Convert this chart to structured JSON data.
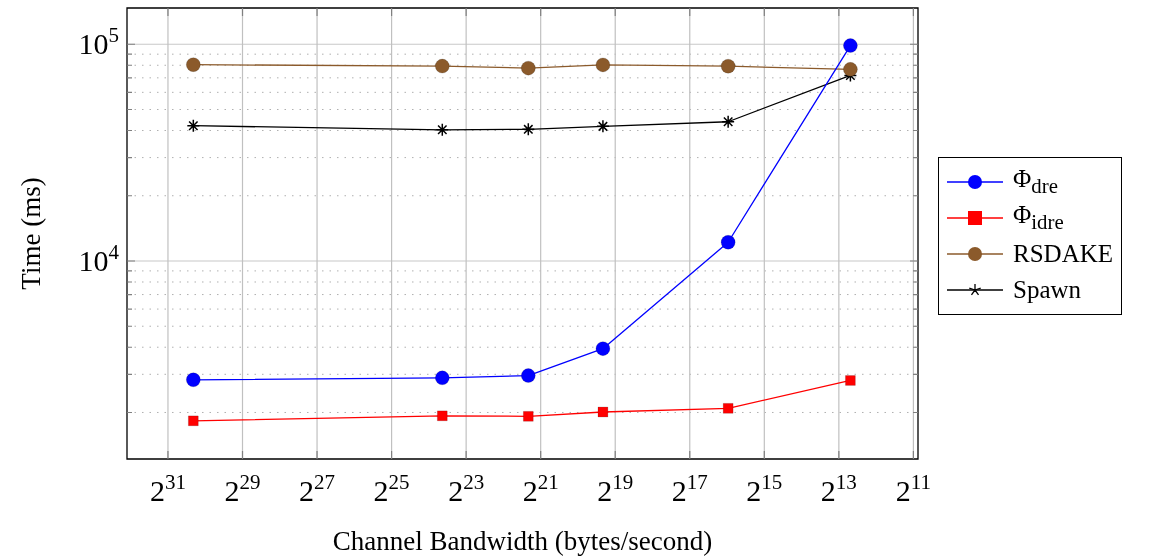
{
  "chart_data": {
    "type": "line",
    "xlabel": "Channel Bandwidth (bytes/second)",
    "ylabel": "Time (ms)",
    "x": [
      1340000000,
      13070000,
      2640000,
      659000,
      64200,
      6610
    ],
    "series": [
      {
        "name": "Φ$_{dre}$",
        "color": "#0000ff",
        "marker": "circle",
        "values": [
          2830,
          2890,
          2960,
          3940,
          12200,
          98600
        ]
      },
      {
        "name": "Φ$_{idre}$",
        "color": "#ff0000",
        "marker": "square",
        "values": [
          1830,
          1930,
          1920,
          2010,
          2090,
          2810
        ]
      },
      {
        "name": "RSDAKE",
        "color": "#8b5a2b",
        "marker": "circle",
        "values": [
          80500,
          79300,
          77600,
          80300,
          79200,
          76600
        ]
      },
      {
        "name": "Spawn",
        "color": "#000000",
        "marker": "cross",
        "values": [
          42100,
          40300,
          40500,
          41800,
          43900,
          71800
        ]
      }
    ],
    "log": "xy",
    "xlim": [
      4600000000,
      1880
    ],
    "ylim": [
      1220,
      147000
    ],
    "xticks": [
      {
        "value": 2147483648,
        "label": "2$^{31}$"
      },
      {
        "value": 536870912,
        "label": "2$^{29}$"
      },
      {
        "value": 134217728,
        "label": "2$^{27}$"
      },
      {
        "value": 33554432,
        "label": "2$^{25}$"
      },
      {
        "value": 8388608,
        "label": "2$^{23}$"
      },
      {
        "value": 2097152,
        "label": "2$^{21}$"
      },
      {
        "value": 524288,
        "label": "2$^{19}$"
      },
      {
        "value": 131072,
        "label": "2$^{17}$"
      },
      {
        "value": 32768,
        "label": "2$^{15}$"
      },
      {
        "value": 8192,
        "label": "2$^{13}$"
      },
      {
        "value": 2048,
        "label": "2$^{11}$"
      }
    ],
    "yticks": [
      {
        "value": 2000,
        "label": null
      },
      {
        "value": 3000,
        "label": null
      },
      {
        "value": 4000,
        "label": null
      },
      {
        "value": 5000,
        "label": null
      },
      {
        "value": 6000,
        "label": null
      },
      {
        "value": 7000,
        "label": null
      },
      {
        "value": 8000,
        "label": null
      },
      {
        "value": 9000,
        "label": null
      },
      {
        "value": 10000,
        "label": "10$^{4}$"
      },
      {
        "value": 20000,
        "label": null
      },
      {
        "value": 30000,
        "label": null
      },
      {
        "value": 40000,
        "label": null
      },
      {
        "value": 50000,
        "label": null
      },
      {
        "value": 60000,
        "label": null
      },
      {
        "value": 70000,
        "label": null
      },
      {
        "value": 80000,
        "label": null
      },
      {
        "value": 90000,
        "label": null
      },
      {
        "value": 100000,
        "label": "10$^{5}$"
      }
    ],
    "grid": true,
    "legend": "right"
  }
}
